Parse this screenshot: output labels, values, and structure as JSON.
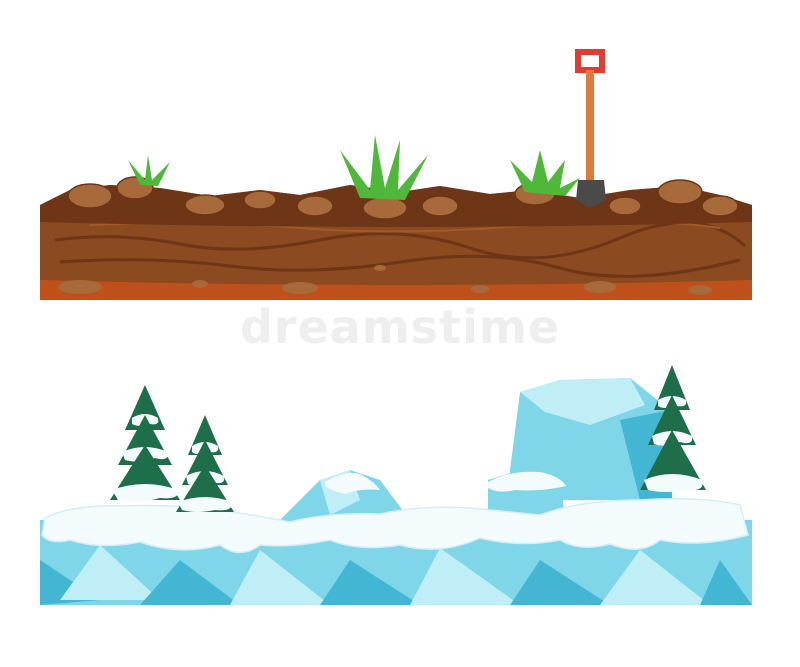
{
  "watermark": {
    "text": "dreamstime"
  },
  "colors": {
    "soil_dark": "#6e3517",
    "soil_mid": "#8b4a1f",
    "soil_light": "#a35a28",
    "soil_bottom": "#c0501a",
    "rock": "#a86a3a",
    "grass": "#4fb83a",
    "shovel_handle": "#e07a3a",
    "shovel_grip": "#e53b2e",
    "shovel_blade": "#4a4a4a",
    "ice_light": "#bfeef6",
    "ice_mid": "#7fd6e8",
    "ice_dark": "#43b6d3",
    "snow": "#f3fbfd",
    "pine": "#1f6e4a"
  },
  "illustrations": [
    {
      "name": "soil-ground-tile"
    },
    {
      "name": "ice-ground-tile"
    }
  ]
}
